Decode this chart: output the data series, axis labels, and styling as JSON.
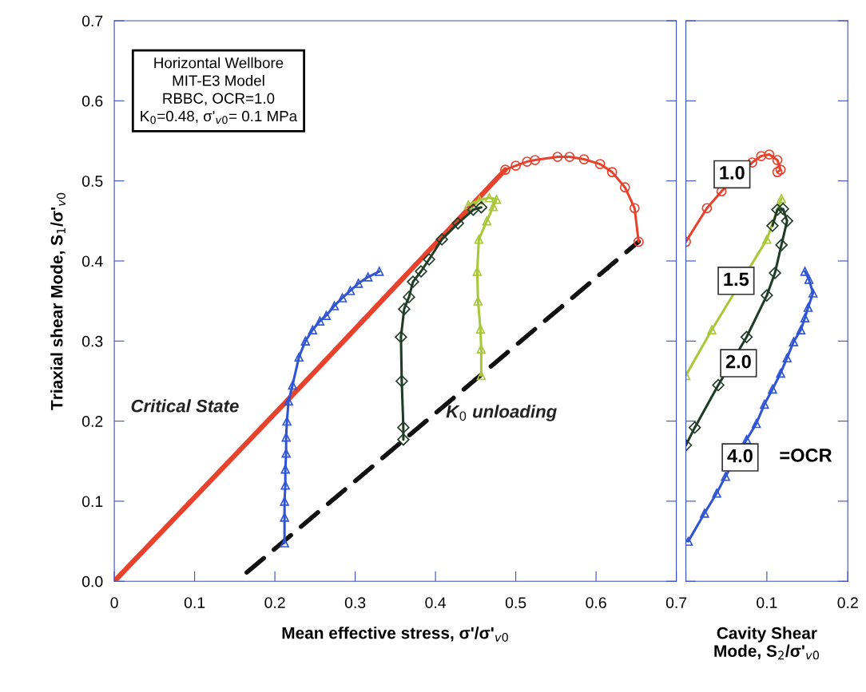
{
  "chart_data": [
    {
      "type": "line",
      "xlabel": "Mean effective stress, σ'/σ'$_{v0}$",
      "ylabel": "Triaxial shear Mode, S$_{1}$/σ'$_{v0}$",
      "xlim": [
        0,
        0.7
      ],
      "xticks": [
        0,
        0.1,
        0.2,
        0.3,
        0.4,
        0.5,
        0.6,
        0.7
      ],
      "ylim": [
        0,
        0.7
      ],
      "yticks": [
        {
          "value": 0,
          "label": "0.0"
        },
        0.1,
        0.2,
        0.3,
        0.4,
        0.5,
        0.6,
        0.7
      ],
      "grid": false,
      "legend": false,
      "series": [
        {
          "color": "#e8412c",
          "marker": "none",
          "x": [
            0,
            0.25,
            0.487
          ],
          "values": [
            0,
            0.262,
            0.514
          ]
        },
        {
          "color": "#111111",
          "marker": "none",
          "line_style": "dashed",
          "x": [
            0.165,
            0.653
          ],
          "values": [
            0.011,
            0.424
          ]
        },
        {
          "color": "#e8412c",
          "marker": "circle",
          "x": [
            0.653,
            0.648,
            0.636,
            0.62,
            0.605,
            0.585,
            0.567,
            0.552,
            0.524,
            0.514,
            0.5,
            0.487
          ],
          "values": [
            0.424,
            0.466,
            0.492,
            0.511,
            0.521,
            0.527,
            0.53,
            0.53,
            0.526,
            0.524,
            0.519,
            0.514
          ]
        },
        {
          "color": "#a8c83a",
          "marker": "triangle",
          "x": [
            0.457,
            0.457,
            0.456,
            0.453,
            0.452,
            0.454,
            0.464,
            0.472,
            0.476,
            0.467,
            0.455,
            0.441
          ],
          "values": [
            0.257,
            0.29,
            0.315,
            0.35,
            0.387,
            0.427,
            0.45,
            0.468,
            0.477,
            0.479,
            0.476,
            0.47
          ]
        },
        {
          "color": "#1f3d26",
          "marker": "diamond",
          "x": [
            0.36,
            0.36,
            0.358,
            0.357,
            0.361,
            0.367,
            0.372,
            0.382,
            0.392,
            0.408,
            0.428,
            0.447,
            0.457
          ],
          "values": [
            0.177,
            0.192,
            0.25,
            0.305,
            0.34,
            0.355,
            0.374,
            0.387,
            0.402,
            0.427,
            0.447,
            0.464,
            0.467
          ]
        },
        {
          "color": "#2f55d4",
          "marker": "triangle",
          "x": [
            0.212,
            0.212,
            0.212,
            0.213,
            0.213,
            0.214,
            0.214,
            0.215,
            0.217,
            0.222,
            0.23,
            0.238,
            0.247,
            0.256,
            0.264,
            0.274,
            0.284,
            0.294,
            0.304,
            0.316,
            0.33
          ],
          "values": [
            0.048,
            0.08,
            0.1,
            0.12,
            0.14,
            0.16,
            0.18,
            0.2,
            0.225,
            0.245,
            0.28,
            0.3,
            0.314,
            0.325,
            0.332,
            0.344,
            0.354,
            0.363,
            0.372,
            0.38,
            0.387
          ]
        }
      ],
      "annotations": [
        "Horizontal Wellbore\nMIT-E3 Model\nRBBC, OCR=1.0\nK$_{0}$=0.48, σ'$_{v0}$= 0.1 MPa",
        "Critical State",
        "K$_{0}$ unloading"
      ]
    },
    {
      "type": "line",
      "xlabel": "Cavity Shear\nMode, S$_{2}$/σ'$_{v0}$",
      "xlim": [
        0,
        0.2
      ],
      "xticks": [
        {
          "value": 0,
          "label": null
        },
        0.1,
        0.2
      ],
      "ylim": [
        0,
        0.7
      ],
      "yticks": [
        0,
        0.1,
        0.2,
        0.3,
        0.4,
        0.5,
        0.6,
        0.7
      ],
      "tick_labels": "x",
      "grid": false,
      "legend": false,
      "series": [
        {
          "color": "#e8412c",
          "marker": "circle",
          "x": [
            0,
            0.026,
            0.044,
            0.082,
            0.093,
            0.103,
            0.113,
            0.117,
            0.113
          ],
          "values": [
            0.424,
            0.466,
            0.487,
            0.523,
            0.531,
            0.533,
            0.526,
            0.514,
            0.511
          ]
        },
        {
          "color": "#a8c83a",
          "marker": "triangle",
          "x": [
            0,
            0.032,
            0.1,
            0.118
          ],
          "values": [
            0.257,
            0.314,
            0.427,
            0.478
          ]
        },
        {
          "color": "#1f3d26",
          "marker": "diamond",
          "x": [
            0,
            0.011,
            0.04,
            0.075,
            0.1,
            0.11,
            0.118,
            0.125,
            0.12,
            0.113,
            0.107
          ],
          "values": [
            0.17,
            0.192,
            0.245,
            0.305,
            0.357,
            0.385,
            0.42,
            0.45,
            0.465,
            0.464,
            0.444
          ]
        },
        {
          "color": "#2f55d4",
          "marker": "triangle",
          "x": [
            0.003,
            0.023,
            0.038,
            0.049,
            0.075,
            0.087,
            0.097,
            0.107,
            0.117,
            0.125,
            0.133,
            0.142,
            0.147,
            0.151,
            0.157,
            0.152,
            0.147
          ],
          "values": [
            0.05,
            0.085,
            0.11,
            0.131,
            0.177,
            0.197,
            0.221,
            0.24,
            0.26,
            0.279,
            0.299,
            0.314,
            0.329,
            0.342,
            0.36,
            0.377,
            0.387
          ]
        }
      ],
      "annotations": [
        "1.0",
        "1.5",
        "2.0",
        "4.0",
        "=OCR"
      ]
    }
  ]
}
